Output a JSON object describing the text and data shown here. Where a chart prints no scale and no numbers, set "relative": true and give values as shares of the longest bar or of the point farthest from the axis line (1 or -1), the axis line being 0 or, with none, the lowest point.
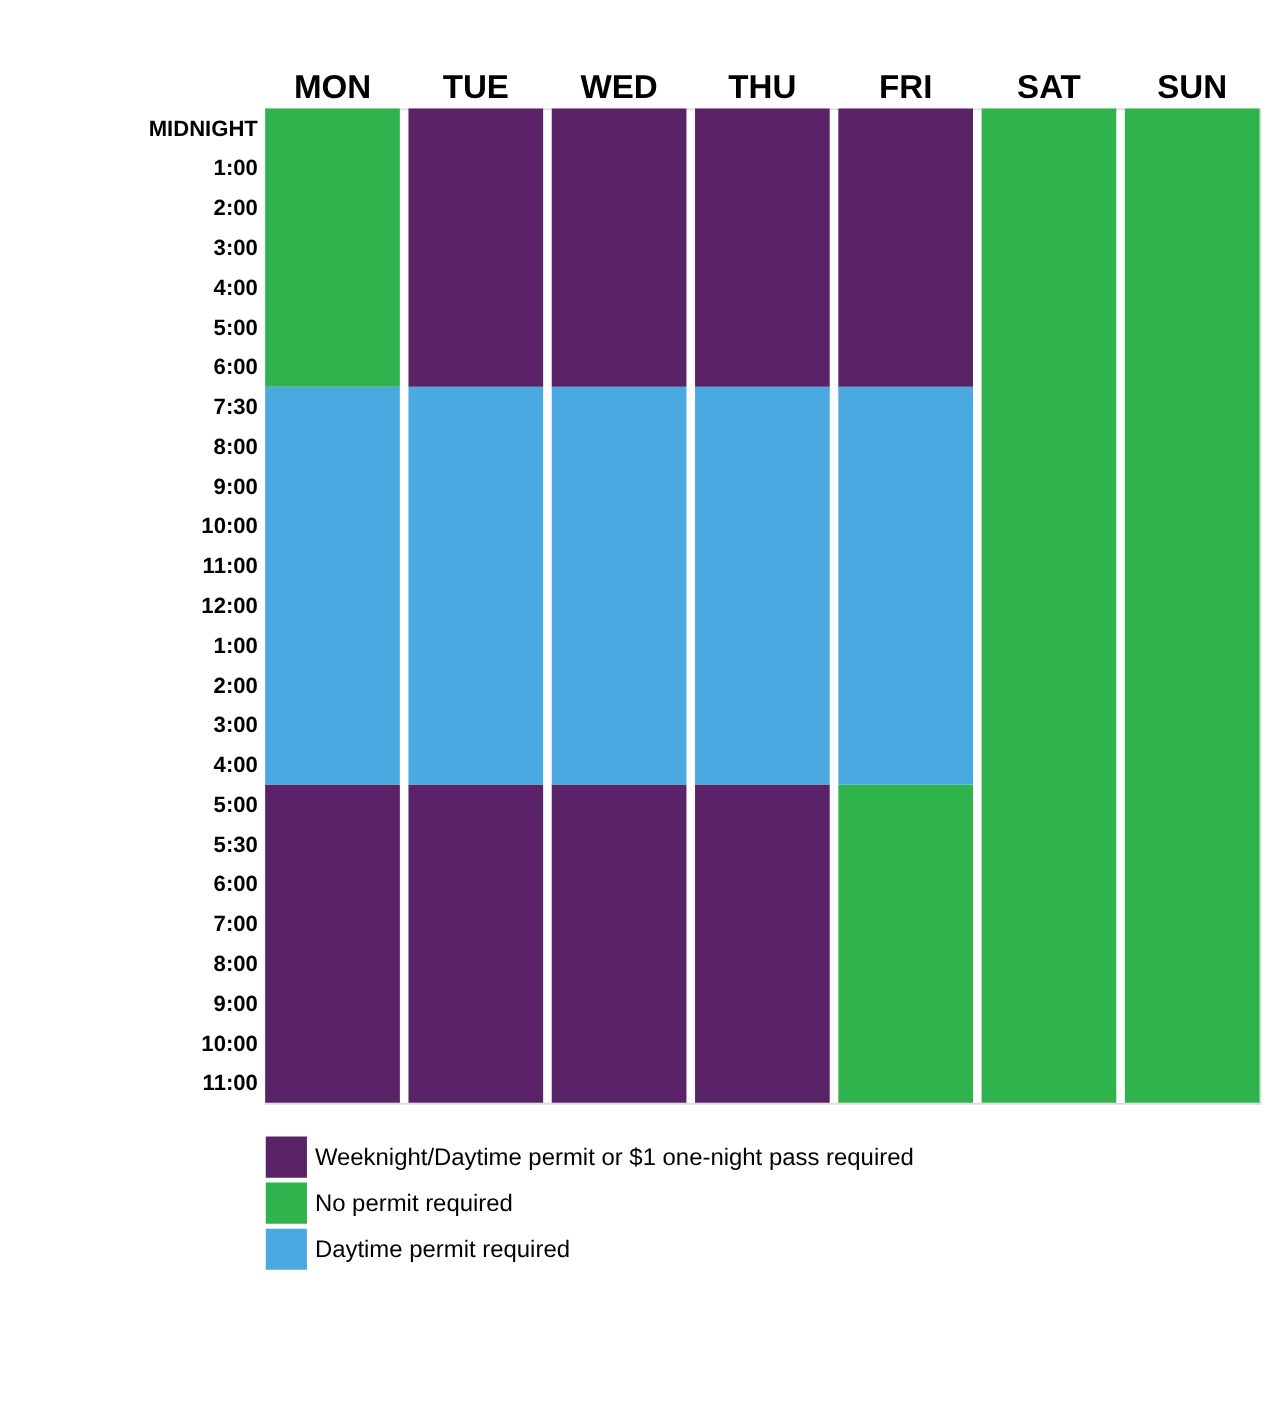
{
  "chart_data": {
    "type": "bar",
    "relative": true,
    "stacked": true,
    "categories": [
      "MON",
      "TUE",
      "WED",
      "THU",
      "FRI",
      "SAT",
      "SUN"
    ],
    "series": [
      {
        "name": "Weeknight/Daytime permit or $1 one-night pass required",
        "color": "#5a2367",
        "values": [
          0.32,
          0.32,
          0.32,
          0.32,
          null,
          null,
          null
        ]
      },
      {
        "name": "No permit required",
        "color": "#2fb34c",
        "values": [
          null,
          null,
          null,
          null,
          0.32,
          1,
          1
        ]
      },
      {
        "name": "Daytime permit required",
        "color": "#4aa9e0",
        "values": [
          0.4,
          0.4,
          0.4,
          0.4,
          0.4,
          null,
          null
        ]
      },
      {
        "color": "#2fb34c",
        "values": [
          0.28,
          null,
          null,
          null,
          null,
          null,
          null
        ]
      },
      {
        "color": "#5a2367",
        "values": [
          null,
          0.28,
          0.28,
          0.28,
          0.28,
          null,
          null
        ]
      }
    ],
    "annotations": [
      "MIDNIGHT",
      "1:00",
      "2:00",
      "3:00",
      "4:00",
      "5:00",
      "6:00",
      "7:30",
      "8:00",
      "9:00",
      "10:00",
      "11:00",
      "12:00",
      "1:00",
      "2:00",
      "3:00",
      "4:00",
      "5:00",
      "5:30",
      "6:00",
      "7:00",
      "8:00",
      "9:00",
      "10:00",
      "11:00"
    ],
    "legend": "bottom"
  }
}
